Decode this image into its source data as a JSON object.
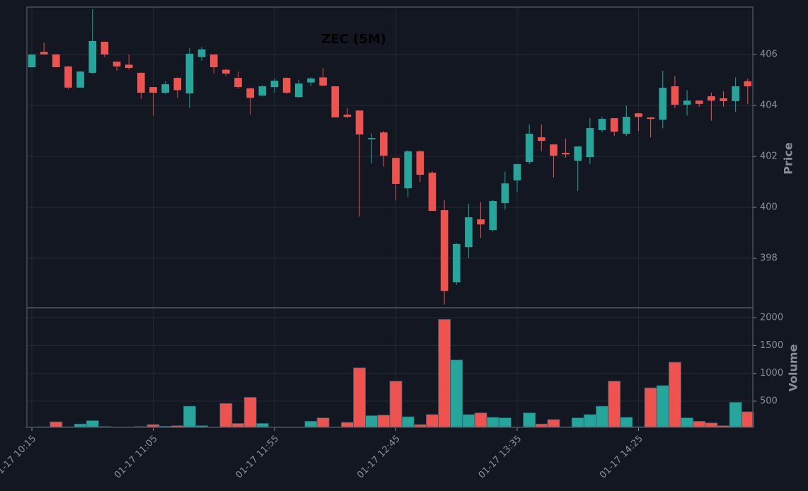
{
  "chart_data": {
    "type": "candlestick",
    "title": "ZEC (5M)",
    "ylabel": "Price",
    "volume_label": "Volume",
    "up_color": "#26a69a",
    "down_color": "#ef5350",
    "grid": true,
    "categories": [
      "01-17 10:15",
      null,
      null,
      null,
      null,
      null,
      null,
      null,
      null,
      null,
      "01-17 11:05",
      null,
      null,
      null,
      null,
      null,
      null,
      null,
      null,
      null,
      "01-17 11:55",
      null,
      null,
      null,
      null,
      null,
      null,
      null,
      null,
      null,
      "01-17 12:45",
      null,
      null,
      null,
      null,
      null,
      null,
      null,
      null,
      null,
      "01-17 13:35",
      null,
      null,
      null,
      null,
      null,
      null,
      null,
      null,
      null,
      "01-17 14:25",
      null,
      null,
      null,
      null,
      null,
      null,
      null,
      null,
      null
    ],
    "open": [
      405.5,
      406.1,
      406.0,
      405.53,
      404.7,
      405.28,
      406.5,
      405.72,
      405.6,
      405.28,
      404.72,
      404.5,
      405.08,
      404.47,
      405.9,
      406.0,
      405.4,
      405.08,
      404.67,
      404.39,
      404.72,
      405.08,
      404.33,
      404.9,
      405.1,
      404.75,
      403.64,
      403.8,
      402.67,
      402.94,
      401.94,
      400.75,
      402.2,
      401.36,
      399.89,
      397.06,
      398.44,
      399.53,
      399.11,
      400.17,
      401.06,
      401.78,
      402.75,
      402.47,
      402.14,
      401.83,
      401.97,
      403.03,
      403.5,
      402.89,
      403.69,
      403.53,
      403.44,
      404.75,
      404.03,
      404.19,
      404.36,
      404.28,
      404.17,
      404.95
    ],
    "high": [
      406.0,
      406.47,
      406.0,
      405.55,
      405.33,
      407.78,
      406.5,
      405.72,
      406.0,
      405.3,
      404.72,
      404.95,
      405.1,
      406.25,
      406.3,
      406.0,
      405.45,
      405.33,
      404.7,
      404.8,
      405.05,
      405.1,
      405.0,
      405.1,
      405.47,
      404.75,
      403.9,
      403.8,
      402.9,
      403.0,
      401.94,
      402.25,
      402.25,
      401.42,
      400.28,
      398.6,
      400.14,
      400.2,
      400.3,
      401.4,
      401.7,
      403.25,
      403.25,
      402.47,
      402.7,
      402.4,
      403.5,
      403.55,
      403.5,
      404.0,
      403.7,
      403.53,
      405.36,
      405.15,
      404.6,
      404.2,
      404.5,
      404.55,
      405.1,
      405.05
    ],
    "low": [
      405.5,
      406.0,
      405.5,
      404.65,
      404.7,
      405.25,
      405.9,
      405.36,
      405.4,
      404.25,
      403.6,
      404.45,
      404.3,
      403.9,
      405.75,
      405.25,
      405.15,
      404.65,
      403.64,
      404.35,
      404.5,
      404.45,
      404.3,
      404.75,
      404.75,
      403.53,
      403.5,
      399.64,
      401.72,
      401.6,
      400.28,
      400.4,
      401.0,
      399.86,
      396.19,
      396.97,
      398.0,
      398.8,
      399.05,
      399.9,
      400.6,
      401.7,
      402.2,
      401.17,
      401.95,
      400.64,
      401.7,
      402.95,
      402.8,
      402.8,
      403.0,
      402.75,
      403.1,
      403.9,
      403.6,
      403.95,
      403.4,
      403.95,
      403.75,
      404.05
    ],
    "close": [
      406.0,
      406.0,
      405.5,
      404.7,
      405.33,
      406.53,
      406.0,
      405.53,
      405.47,
      404.5,
      404.5,
      404.83,
      404.6,
      406.03,
      406.2,
      405.5,
      405.25,
      404.72,
      404.3,
      404.75,
      404.97,
      404.5,
      404.86,
      405.06,
      404.78,
      403.53,
      403.55,
      402.86,
      402.72,
      402.03,
      400.92,
      402.2,
      401.28,
      399.86,
      396.72,
      398.56,
      399.61,
      399.33,
      400.25,
      400.94,
      401.7,
      402.89,
      402.61,
      402.03,
      402.08,
      402.39,
      403.11,
      403.47,
      402.97,
      403.55,
      403.55,
      403.47,
      404.69,
      404.03,
      404.19,
      404.06,
      404.19,
      404.17,
      404.75,
      404.75
    ],
    "volume": [
      35,
      40,
      130,
      40,
      90,
      150,
      45,
      35,
      35,
      45,
      80,
      50,
      60,
      410,
      60,
      35,
      460,
      100,
      570,
      100,
      35,
      35,
      35,
      140,
      200,
      35,
      120,
      1100,
      240,
      250,
      860,
      220,
      80,
      260,
      1970,
      1240,
      260,
      290,
      210,
      200,
      35,
      290,
      90,
      170,
      35,
      200,
      260,
      410,
      860,
      210,
      40,
      740,
      780,
      1200,
      200,
      140,
      110,
      60,
      480,
      310
    ],
    "xlim": [
      -0.41,
      59.42
    ],
    "ylim": [
      396.06,
      407.86
    ],
    "yticks": [
      398,
      400,
      402,
      404,
      406
    ],
    "volume_ylim": [
      30,
      2178
    ],
    "volume_yticks": [
      500,
      1000,
      1500,
      2000
    ]
  }
}
